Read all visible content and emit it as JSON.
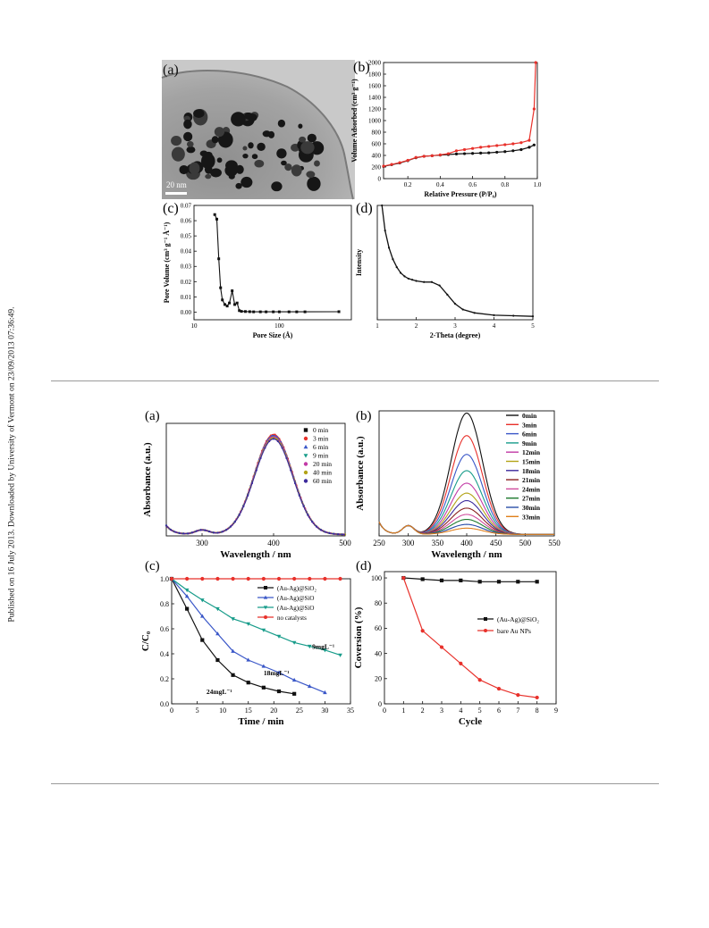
{
  "sidebar": {
    "provenance": "Published on 16 July 2013. Downloaded by University of Vermont on 23/09/2013 07:36:49."
  },
  "figure1": {
    "panel_a": {
      "label": "(a)",
      "scale_bar": "20 nm"
    },
    "panel_b": {
      "label": "(b)"
    },
    "panel_c": {
      "label": "(c)"
    },
    "panel_d": {
      "label": "(d)"
    }
  },
  "figure2": {
    "panel_a": {
      "label": "(a)"
    },
    "panel_b": {
      "label": "(b)"
    },
    "panel_c": {
      "label": "(c)"
    },
    "panel_d": {
      "label": "(d)"
    }
  },
  "colors": {
    "black": "#111111",
    "red": "#e8312b",
    "blue": "#3a57c8",
    "teal": "#179c8a"
  },
  "chart_data": [
    {
      "id": "f1b",
      "type": "line",
      "xlabel": "Relative Pressure (P/P₀)",
      "ylabel": "Volume Adsorbed (cm³ g⁻¹)",
      "xlim": [
        0.05,
        1.0
      ],
      "ylim": [
        0,
        2000
      ],
      "xticks": [
        0.2,
        0.4,
        0.6,
        0.8,
        1.0
      ],
      "xtick_labels": [
        "0.2",
        "0.4",
        "0.6",
        "0.8",
        "1.0"
      ],
      "yticks": [
        0,
        200,
        400,
        600,
        800,
        1000,
        1200,
        1400,
        1600,
        1800,
        2000
      ],
      "ytick_labels": [
        "0",
        "200",
        "400",
        "600",
        "800",
        "1000",
        "1200",
        "1400",
        "1600",
        "1800",
        "2000"
      ],
      "series": [
        {
          "color": "#111111",
          "x": [
            0.05,
            0.1,
            0.15,
            0.2,
            0.25,
            0.3,
            0.35,
            0.4,
            0.45,
            0.5,
            0.55,
            0.6,
            0.65,
            0.7,
            0.75,
            0.8,
            0.85,
            0.9,
            0.95,
            0.98
          ],
          "y": [
            210,
            240,
            270,
            310,
            360,
            385,
            395,
            405,
            415,
            425,
            430,
            435,
            440,
            445,
            455,
            465,
            480,
            500,
            540,
            580
          ]
        },
        {
          "color": "#e8312b",
          "x": [
            0.05,
            0.1,
            0.15,
            0.2,
            0.25,
            0.3,
            0.35,
            0.4,
            0.45,
            0.5,
            0.55,
            0.6,
            0.65,
            0.7,
            0.75,
            0.8,
            0.85,
            0.9,
            0.95,
            0.98,
            0.99
          ],
          "y": [
            215,
            245,
            275,
            315,
            365,
            385,
            395,
            410,
            430,
            480,
            500,
            520,
            540,
            555,
            570,
            585,
            600,
            620,
            660,
            1200,
            2000
          ]
        }
      ]
    },
    {
      "id": "f1c",
      "type": "line",
      "xlabel": "Pore Size (Å)",
      "ylabel": "Pore Volume (cm³ g⁻¹ Å⁻¹)",
      "xscale": "log",
      "xlim": [
        10,
        700
      ],
      "ylim": [
        -0.005,
        0.07
      ],
      "xticks": [
        10,
        100
      ],
      "xtick_labels": [
        "10",
        "100"
      ],
      "yticks": [
        0,
        0.01,
        0.02,
        0.03,
        0.04,
        0.05,
        0.06,
        0.07
      ],
      "ytick_labels": [
        "0.00",
        "0.01",
        "0.02",
        "0.03",
        "0.04",
        "0.05",
        "0.06",
        "0.07"
      ],
      "series": [
        {
          "color": "#111111",
          "x": [
            17.5,
            18.5,
            19.5,
            20.5,
            21.5,
            23,
            24.5,
            26,
            28,
            30,
            32,
            34,
            36,
            40,
            45,
            50,
            60,
            70,
            85,
            100,
            130,
            160,
            200,
            500
          ],
          "y": [
            0.064,
            0.061,
            0.035,
            0.016,
            0.008,
            0.005,
            0.004,
            0.006,
            0.014,
            0.005,
            0.006,
            0.001,
            0.0005,
            0.0004,
            0.0003,
            0.0002,
            0.0002,
            0.0002,
            0.0002,
            0.0002,
            0.0002,
            0.0002,
            0.0002,
            0.0003
          ]
        }
      ]
    },
    {
      "id": "f1d",
      "type": "line",
      "xlabel": "2-Theta (degree)",
      "ylabel": "Intensity",
      "xlim": [
        1,
        5
      ],
      "ylim": [
        0,
        100
      ],
      "xticks": [
        1,
        2,
        3,
        4,
        5
      ],
      "xtick_labels": [
        "1",
        "2",
        "3",
        "4",
        "5"
      ],
      "series": [
        {
          "color": "#111111",
          "x": [
            1.12,
            1.2,
            1.3,
            1.4,
            1.5,
            1.6,
            1.7,
            1.8,
            1.9,
            2.0,
            2.2,
            2.4,
            2.6,
            2.8,
            3.0,
            3.2,
            3.5,
            4.0,
            4.5,
            5.0
          ],
          "y": [
            100,
            78,
            63,
            53,
            46,
            41,
            38,
            36,
            35,
            34,
            33,
            33,
            30,
            22,
            14,
            9,
            6,
            4,
            3.5,
            3
          ]
        }
      ]
    },
    {
      "id": "f2a",
      "type": "line",
      "xlabel": "Wavelength / nm",
      "ylabel": "Absorbance (a.u.)",
      "xlim": [
        250,
        500
      ],
      "ylim": [
        0,
        1.0
      ],
      "xticks": [
        300,
        400,
        500
      ],
      "xtick_labels": [
        "300",
        "400",
        "500"
      ],
      "legend": "top-right",
      "series": [
        {
          "name": "0 min",
          "color": "#111111",
          "peak": 0.88
        },
        {
          "name": "3 min",
          "color": "#e8312b",
          "peak": 0.89
        },
        {
          "name": "6 min",
          "color": "#3a57c8",
          "peak": 0.88
        },
        {
          "name": "9 min",
          "color": "#179c8a",
          "peak": 0.87
        },
        {
          "name": "20 min",
          "color": "#c23aa6",
          "peak": 0.87
        },
        {
          "name": "40 min",
          "color": "#b3a317",
          "peak": 0.86
        },
        {
          "name": "60 min",
          "color": "#3c2a9c",
          "peak": 0.85
        }
      ]
    },
    {
      "id": "f2b",
      "type": "line",
      "xlabel": "Wavelength / nm",
      "ylabel": "Absorbance (a.u.)",
      "xlim": [
        250,
        550
      ],
      "ylim": [
        0,
        1.0
      ],
      "xticks": [
        250,
        300,
        350,
        400,
        450,
        500,
        550
      ],
      "xtick_labels": [
        "250",
        "300",
        "350",
        "400",
        "450",
        "500",
        "550"
      ],
      "legend": "top-right",
      "series": [
        {
          "name": "0min",
          "color": "#111111",
          "peak": 0.97
        },
        {
          "name": "3min",
          "color": "#e8312b",
          "peak": 0.79
        },
        {
          "name": "6min",
          "color": "#3a57c8",
          "peak": 0.64
        },
        {
          "name": "9min",
          "color": "#179c8a",
          "peak": 0.51
        },
        {
          "name": "12min",
          "color": "#c23aa6",
          "peak": 0.41
        },
        {
          "name": "15min",
          "color": "#b3a317",
          "peak": 0.33
        },
        {
          "name": "18min",
          "color": "#3c2a9c",
          "peak": 0.27
        },
        {
          "name": "21min",
          "color": "#8a1f1f",
          "peak": 0.21
        },
        {
          "name": "24min",
          "color": "#d04a9c",
          "peak": 0.16
        },
        {
          "name": "27min",
          "color": "#1e7a2e",
          "peak": 0.12
        },
        {
          "name": "30min",
          "color": "#2a4ea8",
          "peak": 0.08
        },
        {
          "name": "33min",
          "color": "#e07f1a",
          "peak": 0.05
        }
      ]
    },
    {
      "id": "f2c",
      "type": "line",
      "xlabel": "Time / min",
      "ylabel": "C/C₀",
      "xlim": [
        0,
        35
      ],
      "ylim": [
        0,
        1.0
      ],
      "xticks": [
        0,
        5,
        10,
        15,
        20,
        25,
        30,
        35
      ],
      "xtick_labels": [
        "0",
        "5",
        "10",
        "15",
        "20",
        "25",
        "30",
        "35"
      ],
      "yticks": [
        0,
        0.2,
        0.4,
        0.6,
        0.8,
        1.0
      ],
      "ytick_labels": [
        "0.0",
        "0.2",
        "0.4",
        "0.6",
        "0.8",
        "1.0"
      ],
      "legend": "top-right",
      "annotations": [
        "24mgL⁻¹",
        "18mgL⁻¹",
        "9mgL⁻¹"
      ],
      "series": [
        {
          "name": "(Au-Ag)@SiO₂",
          "color": "#111111",
          "marker": "square",
          "x": [
            0,
            3,
            6,
            9,
            12,
            15,
            18,
            21,
            24
          ],
          "y": [
            1.0,
            0.76,
            0.51,
            0.35,
            0.23,
            0.17,
            0.13,
            0.1,
            0.08
          ]
        },
        {
          "name": "(Au-Ag)@SiO",
          "color": "#3a57c8",
          "marker": "triangle",
          "x": [
            0,
            3,
            6,
            9,
            12,
            15,
            18,
            21,
            24,
            27,
            30
          ],
          "y": [
            1.0,
            0.86,
            0.7,
            0.56,
            0.42,
            0.35,
            0.3,
            0.25,
            0.19,
            0.14,
            0.09
          ]
        },
        {
          "name": "(Au-Ag)@SiO",
          "color": "#179c8a",
          "marker": "triangle-down",
          "x": [
            0,
            3,
            6,
            9,
            12,
            15,
            18,
            21,
            24,
            27,
            30,
            33
          ],
          "y": [
            1.0,
            0.91,
            0.83,
            0.76,
            0.68,
            0.64,
            0.59,
            0.54,
            0.49,
            0.46,
            0.43,
            0.39
          ]
        },
        {
          "name": "no catalysts",
          "color": "#e8312b",
          "marker": "circle",
          "x": [
            0,
            3,
            6,
            9,
            12,
            15,
            18,
            21,
            24,
            27,
            30,
            33
          ],
          "y": [
            1.0,
            1.0,
            1.0,
            1.0,
            1.0,
            1.0,
            1.0,
            1.0,
            1.0,
            1.0,
            1.0,
            1.0
          ]
        }
      ]
    },
    {
      "id": "f2d",
      "type": "line",
      "xlabel": "Cycle",
      "ylabel": "Coversion (%)",
      "xlim": [
        0,
        9
      ],
      "ylim": [
        0,
        105
      ],
      "xticks": [
        0,
        1,
        2,
        3,
        4,
        5,
        6,
        7,
        8,
        9
      ],
      "xtick_labels": [
        "0",
        "1",
        "2",
        "3",
        "4",
        "5",
        "6",
        "7",
        "8",
        "9"
      ],
      "yticks": [
        0,
        20,
        40,
        60,
        80,
        100
      ],
      "ytick_labels": [
        "0",
        "20",
        "40",
        "60",
        "80",
        "100"
      ],
      "legend": "right",
      "series": [
        {
          "name": "(Au-Ag)@SiO₂",
          "color": "#111111",
          "marker": "square",
          "x": [
            1,
            2,
            3,
            4,
            5,
            6,
            7,
            8
          ],
          "y": [
            100,
            99,
            98,
            98,
            97,
            97,
            97,
            97
          ]
        },
        {
          "name": "bare Au NPs",
          "color": "#e8312b",
          "marker": "circle",
          "x": [
            1,
            2,
            3,
            4,
            5,
            6,
            7,
            8
          ],
          "y": [
            100,
            58,
            45,
            32,
            19,
            12,
            7,
            5
          ]
        }
      ]
    }
  ]
}
